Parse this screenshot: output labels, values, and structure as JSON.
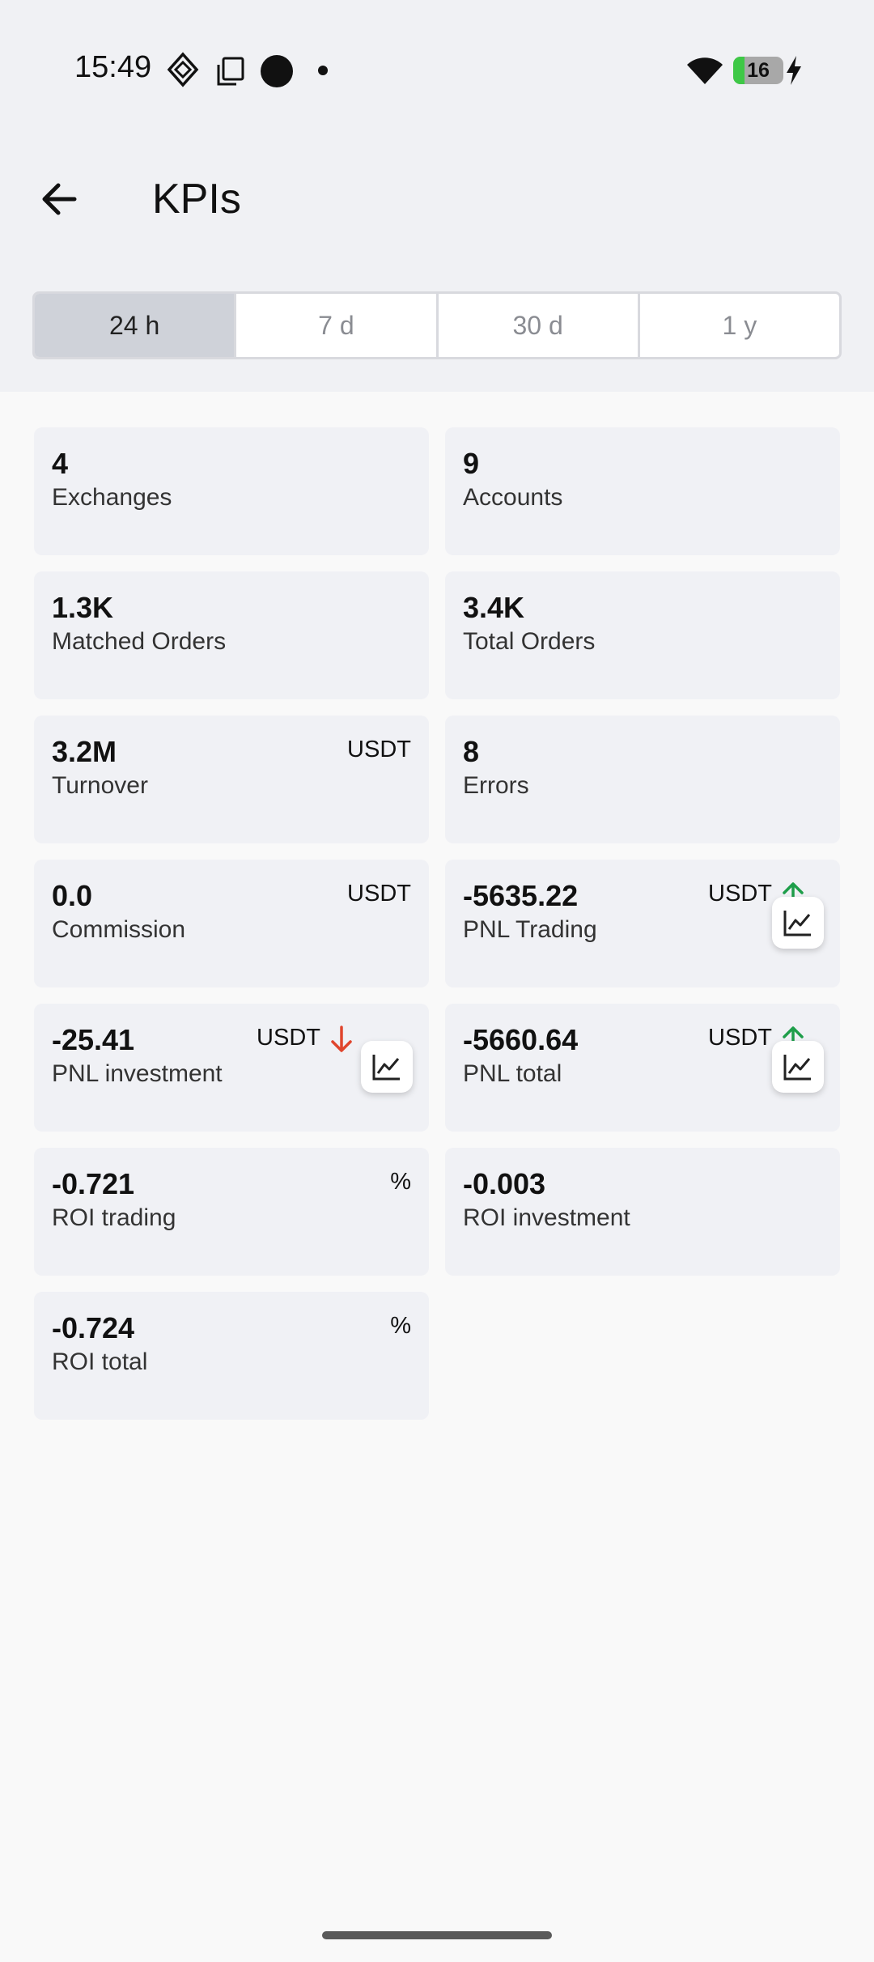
{
  "status_bar": {
    "time": "15:49",
    "battery": "16"
  },
  "app_bar": {
    "title": "KPIs"
  },
  "tabs": [
    {
      "label": "24 h",
      "active": true
    },
    {
      "label": "7 d",
      "active": false
    },
    {
      "label": "30 d",
      "active": false
    },
    {
      "label": "1 y",
      "active": false
    }
  ],
  "kpis": {
    "exchanges": {
      "value": "4",
      "label": "Exchanges"
    },
    "accounts": {
      "value": "9",
      "label": "Accounts"
    },
    "matched_orders": {
      "value": "1.3K",
      "label": "Matched Orders"
    },
    "total_orders": {
      "value": "3.4K",
      "label": "Total Orders"
    },
    "turnover": {
      "value": "3.2M",
      "label": "Turnover",
      "unit": "USDT"
    },
    "errors": {
      "value": "8",
      "label": "Errors"
    },
    "commission": {
      "value": "0.0",
      "label": "Commission",
      "unit": "USDT"
    },
    "pnl_trading": {
      "value": "-5635.22",
      "label": "PNL Trading",
      "unit": "USDT",
      "trend": "up"
    },
    "pnl_investment": {
      "value": "-25.41",
      "label": "PNL investment",
      "unit": "USDT",
      "trend": "down"
    },
    "pnl_total": {
      "value": "-5660.64",
      "label": "PNL total",
      "unit": "USDT",
      "trend": "up"
    },
    "roi_trading": {
      "value": "-0.721",
      "label": "ROI trading",
      "unit": "%"
    },
    "roi_investment": {
      "value": "-0.003",
      "label": "ROI investment"
    },
    "roi_total": {
      "value": "-0.724",
      "label": "ROI total",
      "unit": "%"
    }
  },
  "colors": {
    "trend_up": "#1e9e4a",
    "trend_down": "#e0452d",
    "active_tab": "#cfd2d9"
  },
  "icons": [
    "back-arrow-icon",
    "chart-line-icon",
    "arrow-up-icon",
    "arrow-down-icon",
    "wifi-icon",
    "charging-bolt-icon"
  ]
}
